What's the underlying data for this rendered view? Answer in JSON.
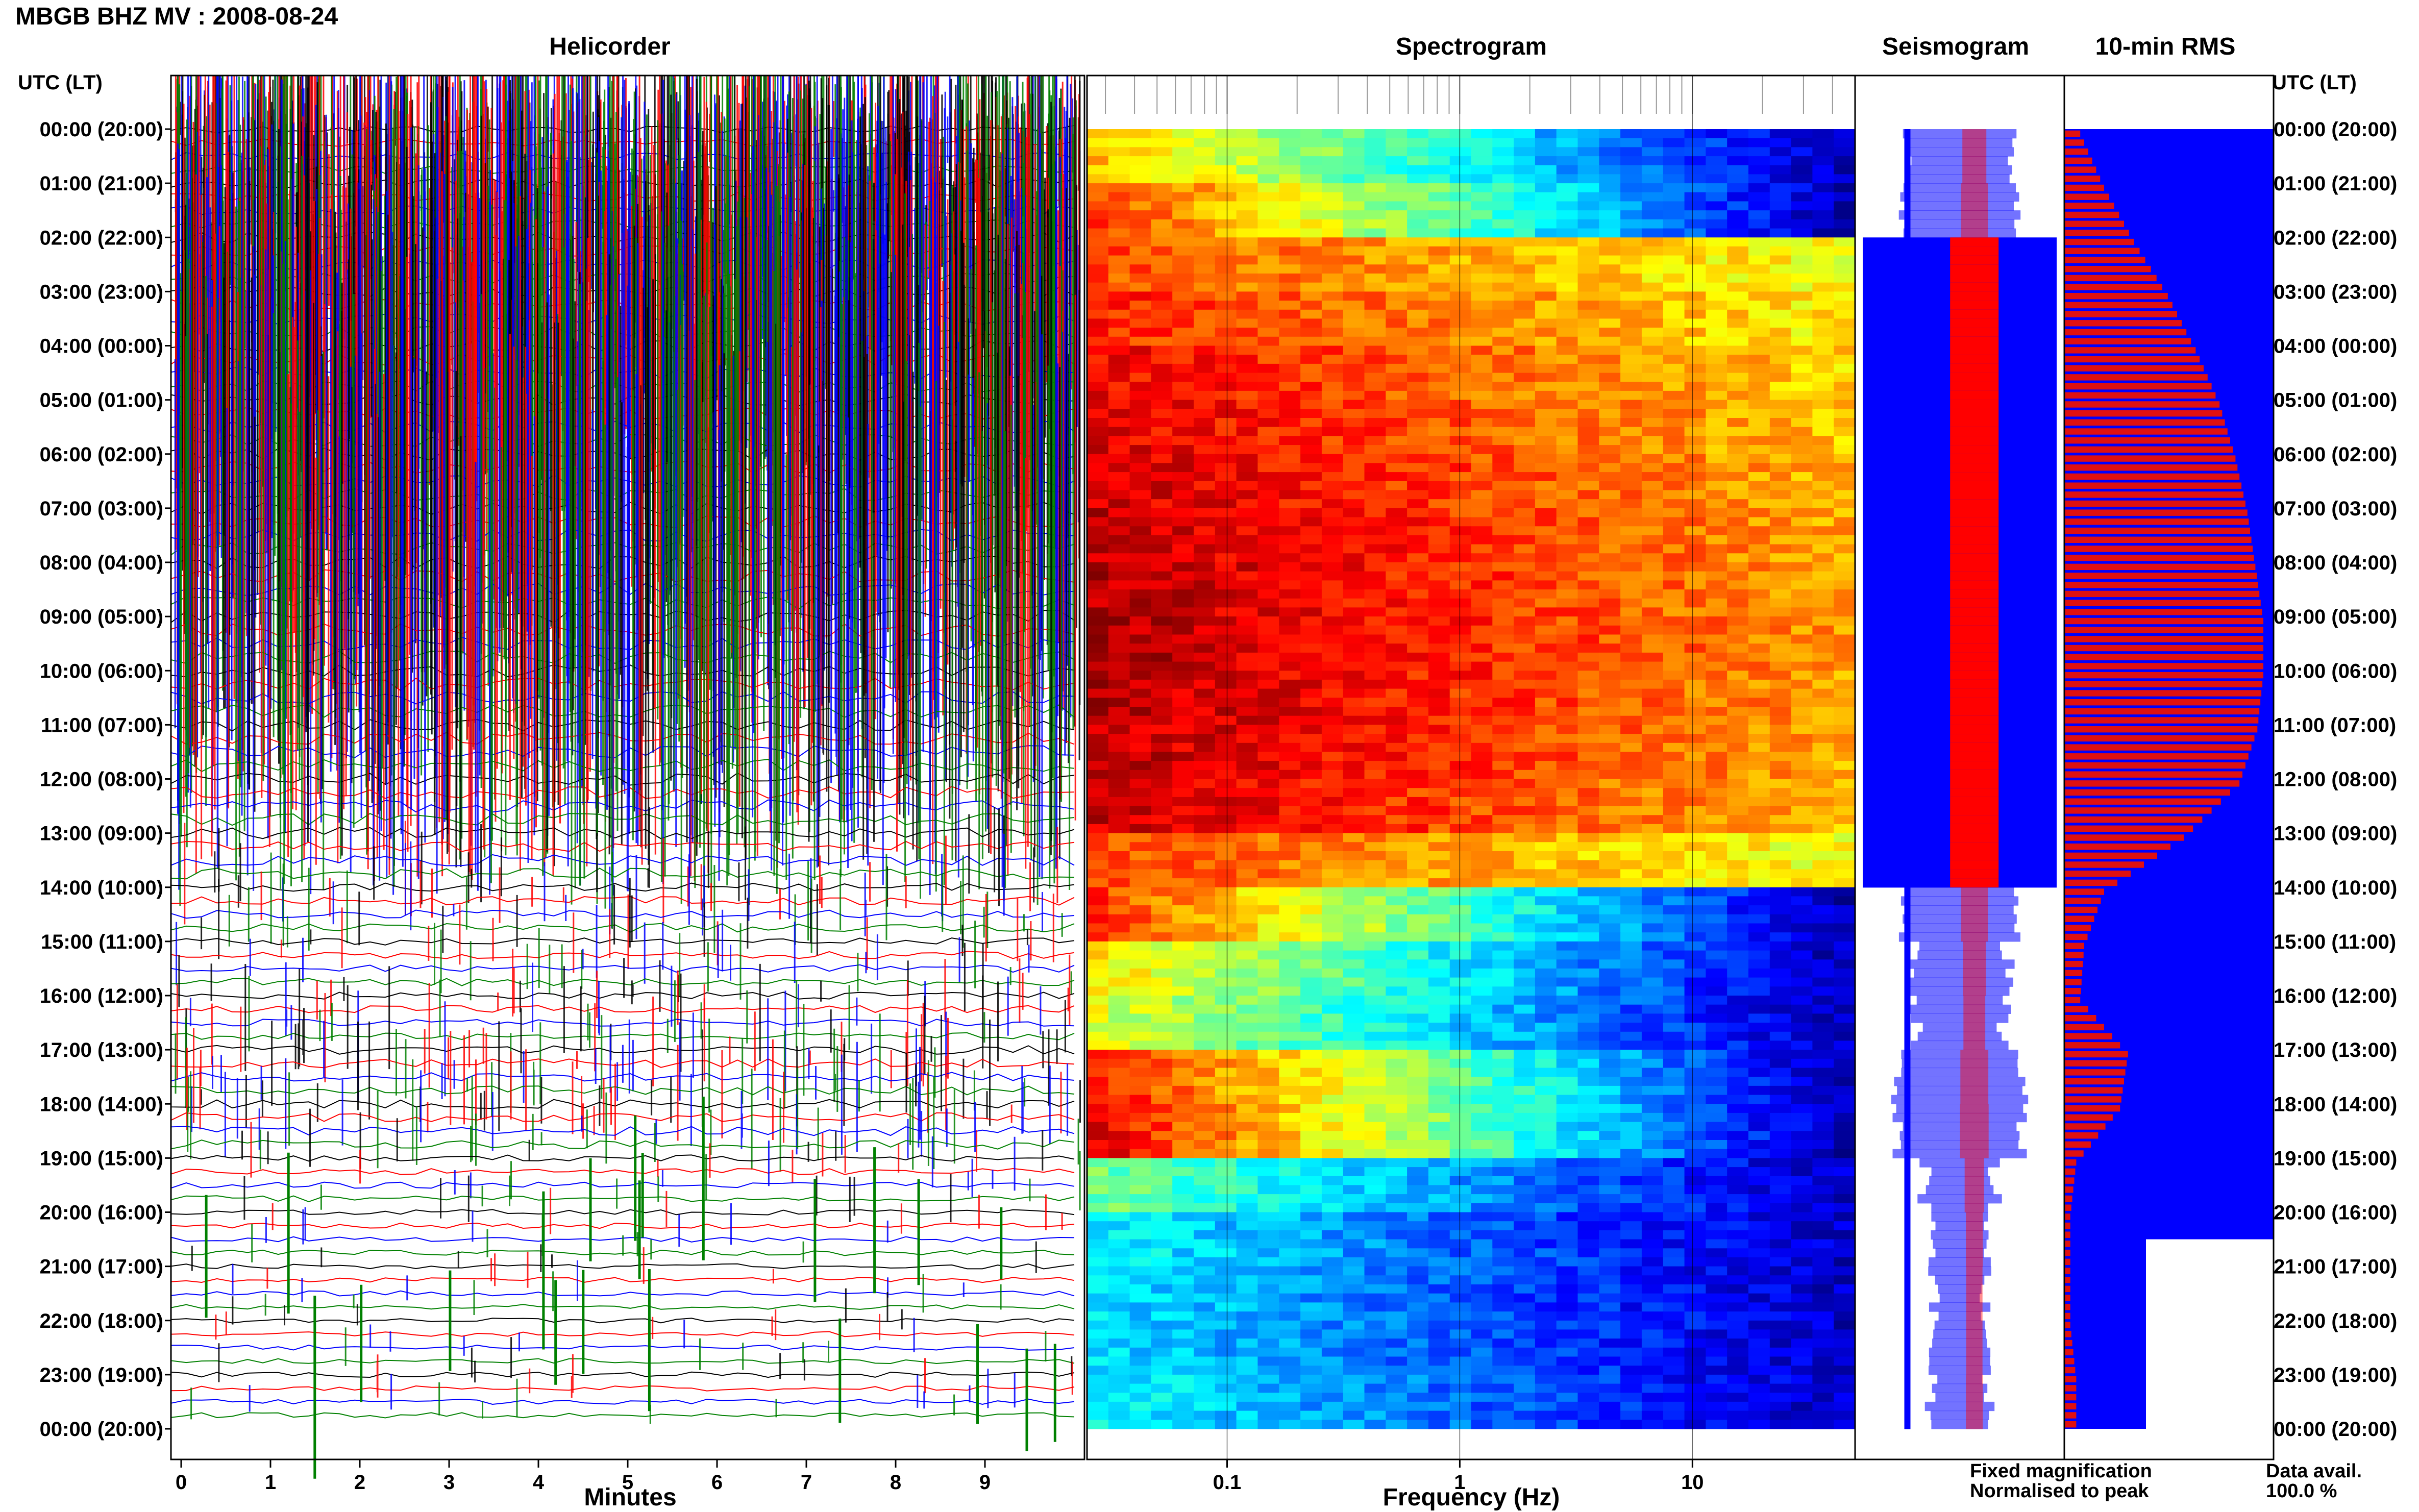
{
  "header": {
    "station_title": "MBGB BHZ MV : 2008-08-24",
    "utc_lt_label": "UTC (LT)"
  },
  "panels": {
    "helicorder": "Helicorder",
    "spectrogram": "Spectrogram",
    "seismogram": "Seismogram",
    "rms": "10-min RMS"
  },
  "legend": {
    "fixed": "Fixed magnification",
    "normalised": "Normalised to peak",
    "fixed_color": "#0000ff",
    "normalised_color": "#ff0000"
  },
  "data_availability": {
    "label": "Data avail.",
    "value": "100.0 %"
  },
  "chart_data": [
    {
      "type": "heatmap",
      "name": "Helicorder",
      "xlabel": "Minutes",
      "x_ticks": [
        "0",
        "1",
        "2",
        "3",
        "4",
        "5",
        "6",
        "7",
        "8",
        "9"
      ],
      "xlim": [
        0,
        10
      ],
      "y_ticks": [
        "00:00 (20:00)",
        "01:00 (21:00)",
        "02:00 (22:00)",
        "03:00 (23:00)",
        "04:00 (00:00)",
        "05:00 (01:00)",
        "06:00 (02:00)",
        "07:00 (03:00)",
        "08:00 (04:00)",
        "09:00 (05:00)",
        "10:00 (06:00)",
        "11:00 (07:00)",
        "12:00 (08:00)",
        "13:00 (09:00)",
        "14:00 (10:00)",
        "15:00 (11:00)",
        "16:00 (12:00)",
        "17:00 (13:00)",
        "18:00 (14:00)",
        "19:00 (15:00)",
        "20:00 (16:00)",
        "21:00 (17:00)",
        "22:00 (18:00)",
        "23:00 (19:00)",
        "00:00 (20:00)"
      ],
      "trace_colors": [
        "#000000",
        "#ff0000",
        "#0000ff",
        "#008000"
      ]
    },
    {
      "type": "heatmap",
      "name": "Spectrogram",
      "xlabel": "Frequency (Hz)",
      "x_scale": "log",
      "x_ticks": [
        "0.1",
        "1",
        "10"
      ],
      "xlim": [
        0.025,
        50
      ],
      "hourly_intensity": [
        0.45,
        0.55,
        0.78,
        0.82,
        0.86,
        0.88,
        0.9,
        0.92,
        0.93,
        0.94,
        0.93,
        0.92,
        0.9,
        0.78,
        0.55,
        0.42,
        0.38,
        0.58,
        0.6,
        0.3,
        0.22,
        0.2,
        0.2,
        0.22
      ]
    },
    {
      "type": "bar",
      "name": "10-min RMS",
      "x": [
        "00:00",
        "01:00",
        "02:00",
        "03:00",
        "04:00",
        "05:00",
        "06:00",
        "07:00",
        "08:00",
        "09:00",
        "10:00",
        "11:00",
        "12:00",
        "13:00",
        "14:00",
        "15:00",
        "16:00",
        "17:00",
        "18:00",
        "19:00",
        "20:00",
        "21:00",
        "22:00",
        "23:00"
      ],
      "values": [
        0.08,
        0.2,
        0.35,
        0.52,
        0.66,
        0.78,
        0.86,
        0.92,
        0.96,
        1.0,
        1.0,
        0.97,
        0.88,
        0.6,
        0.2,
        0.1,
        0.08,
        0.32,
        0.28,
        0.06,
        0.03,
        0.03,
        0.03,
        0.06
      ],
      "ylim": [
        0,
        1
      ]
    }
  ]
}
